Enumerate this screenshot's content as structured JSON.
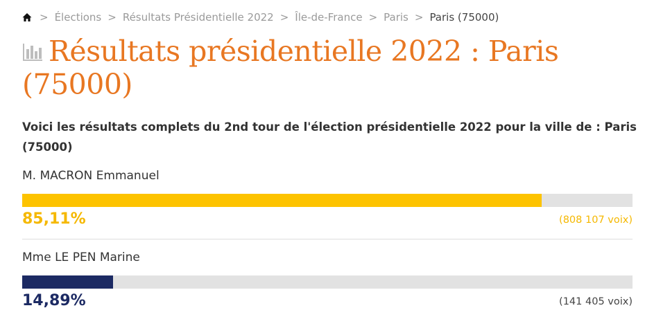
{
  "breadcrumb": {
    "home_icon": "home-icon",
    "separator": ">",
    "items": [
      {
        "label": "Élections"
      },
      {
        "label": "Résultats Présidentielle 2022"
      },
      {
        "label": "Île-de-France"
      },
      {
        "label": "Paris"
      },
      {
        "label": "Paris (75000)"
      }
    ]
  },
  "page": {
    "title_icon": "bar-chart-icon",
    "title": "Résultats présidentielle 2022 : Paris (75000)",
    "subtitle": "Voici les résultats complets du 2nd tour de l'élection présidentielle 2022 pour la ville de : Paris (75000)"
  },
  "colors": {
    "title": "#e87722",
    "macron": "#fdc300",
    "macron_votes_text": "#f5b800",
    "lepen": "#1c2a63",
    "lepen_votes_text": "#444444",
    "track": "#e2e2e2"
  },
  "candidates": [
    {
      "name": "M. MACRON Emmanuel",
      "percent_label": "85,11%",
      "percent_value": 85.11,
      "votes_label": "(808 107 voix)"
    },
    {
      "name": "Mme LE PEN Marine",
      "percent_label": "14,89%",
      "percent_value": 14.89,
      "votes_label": "(141 405 voix)"
    }
  ]
}
